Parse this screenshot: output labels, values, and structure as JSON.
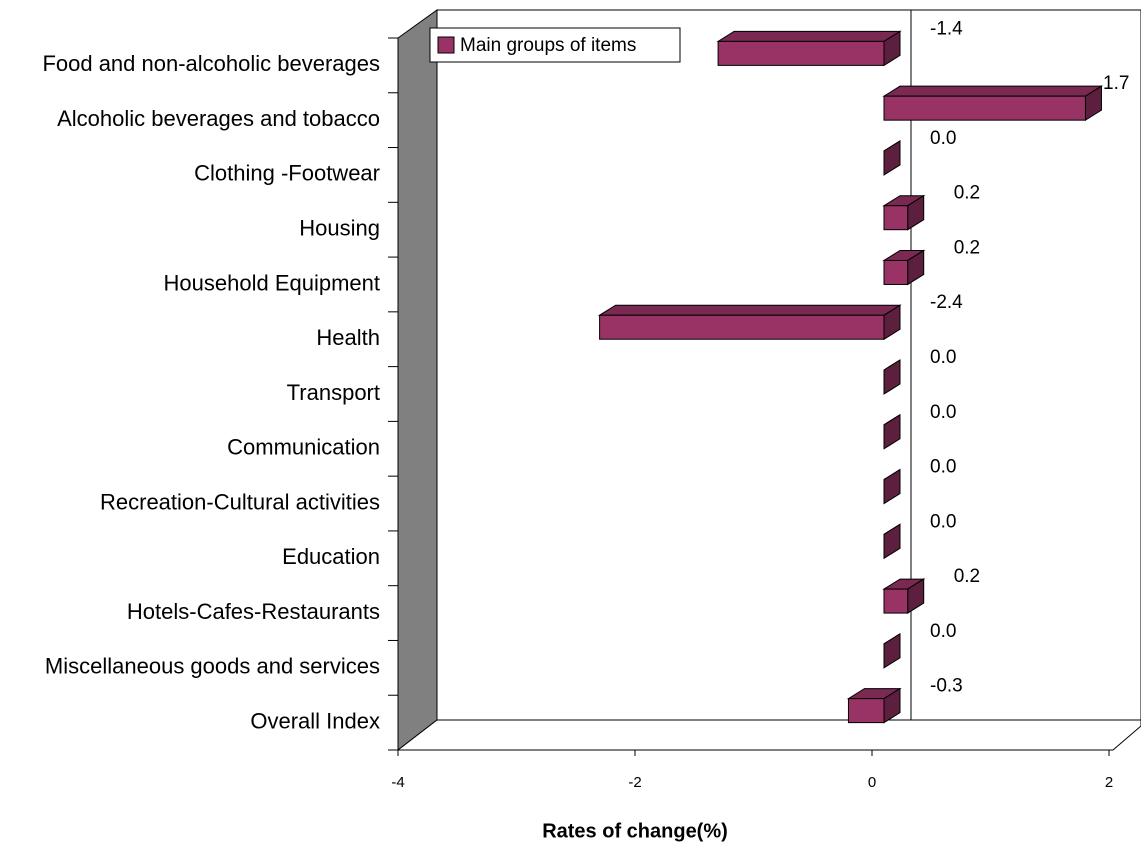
{
  "chart_data": {
    "type": "bar3d-horizontal",
    "x_label": "Rates of change(%)",
    "categories": [
      "Food and non-alcoholic beverages",
      "Alcoholic beverages and tobacco",
      "Clothing -Footwear",
      "Housing",
      "Household Equipment",
      "Health",
      "Transport",
      "Communication",
      "Recreation-Cultural activities",
      "Education",
      "Hotels-Cafes-Restaurants",
      "Miscellaneous goods and services",
      "Overall Index"
    ],
    "series": [
      {
        "name": "Main groups of items",
        "color": "#993366",
        "values": [
          -1.4,
          1.7,
          0,
          0.2,
          0.2,
          -2.4,
          0,
          0,
          0,
          0,
          0.2,
          0,
          -0.3
        ],
        "value_labels": [
          "-1.4",
          "1.7",
          "0.0",
          "0.2",
          "0.2",
          "-2.4",
          "0.0",
          "0.0",
          "0.0",
          "0.0",
          "0.2",
          "0.0",
          "-0.3"
        ]
      }
    ],
    "xlim": [
      -4,
      2
    ],
    "xticks": [
      -4,
      -2,
      0,
      2
    ]
  }
}
